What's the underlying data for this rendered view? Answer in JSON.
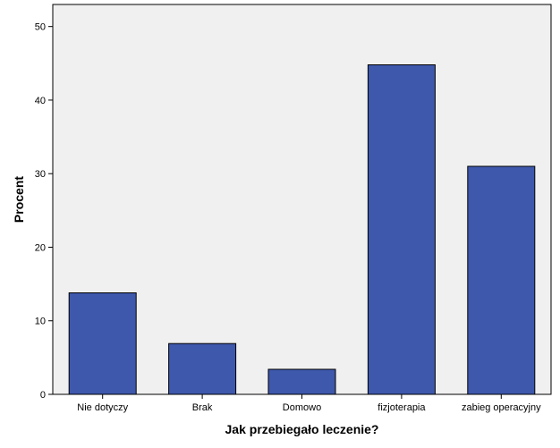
{
  "chart_data": {
    "type": "bar",
    "title": "",
    "xlabel": "Jak przebiegało leczenie?",
    "ylabel": "Procent",
    "categories": [
      "Nie dotyczy",
      "Brak",
      "Domowo",
      "fizjoterapia",
      "zabieg operacyjny"
    ],
    "values": [
      13.8,
      6.9,
      3.4,
      44.8,
      31.0
    ],
    "ylim": [
      0,
      53
    ],
    "yticks": [
      0,
      10,
      20,
      30,
      40,
      50
    ],
    "grid": false,
    "legend": "none",
    "colors": {
      "plot_background": "#f0f0f0",
      "bar_fill": "#3e58ac",
      "bar_stroke": "#000000",
      "axis": "#000000"
    }
  }
}
